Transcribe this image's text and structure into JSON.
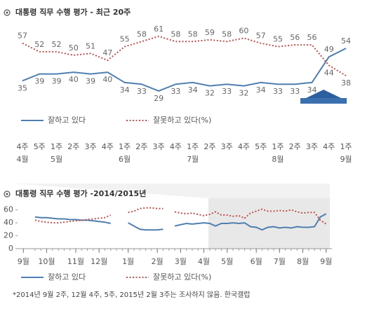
{
  "chart_data": [
    {
      "type": "line",
      "title": "대통령 직무 수행 평가 - 최근 20주",
      "categories": [
        "4주",
        "5주",
        "1주",
        "2주",
        "3주",
        "4주",
        "1주",
        "2주",
        "3주",
        "4주",
        "1주",
        "2주",
        "3주",
        "4주",
        "5주",
        "1주",
        "2주",
        "3주",
        "4주",
        "1주"
      ],
      "months": [
        "4월",
        null,
        "5월",
        null,
        null,
        null,
        "6월",
        null,
        null,
        null,
        "7월",
        null,
        null,
        null,
        null,
        "8월",
        null,
        null,
        null,
        "9월"
      ],
      "ylim": [
        22,
        70
      ],
      "series": [
        {
          "name": "잘하고 있다",
          "color": "#4f7fb0",
          "style": "solid",
          "values": [
            35,
            39,
            39,
            40,
            39,
            40,
            34,
            33,
            29,
            33,
            34,
            32,
            33,
            32,
            34,
            33,
            33,
            34,
            49,
            54
          ]
        },
        {
          "name": "잘못하고 있다(%)",
          "color": "#c0504d",
          "style": "dotted",
          "values": [
            57,
            52,
            52,
            50,
            51,
            47,
            55,
            58,
            61,
            58,
            58,
            59,
            58,
            60,
            57,
            55,
            56,
            56,
            44,
            38
          ]
        }
      ]
    },
    {
      "type": "line",
      "title": "대통령 직무 수행 평가 -2014/2015년",
      "x": [
        0,
        1,
        2,
        3,
        4,
        5,
        6,
        7,
        8,
        9,
        10,
        11,
        12,
        13,
        14,
        15,
        16,
        17,
        18,
        19,
        20,
        21,
        22,
        23,
        24,
        25,
        26,
        27,
        28,
        29,
        30,
        31,
        32,
        33,
        34,
        35,
        36,
        37,
        38,
        39,
        40,
        41,
        42,
        43,
        44,
        45,
        46,
        47,
        48,
        49,
        50
      ],
      "xlim": [
        -3,
        51
      ],
      "xticks": [
        {
          "value": -2,
          "label": "9월"
        },
        {
          "value": 2,
          "label": "10월"
        },
        {
          "value": 7,
          "label": "11월"
        },
        {
          "value": 11,
          "label": "12월"
        },
        {
          "value": 16,
          "label": "1월"
        },
        {
          "value": 21,
          "label": "2월"
        },
        {
          "value": 25,
          "label": "3월"
        },
        {
          "value": 29,
          "label": "4월"
        },
        {
          "value": 33,
          "label": "5월"
        },
        {
          "value": 38,
          "label": "6월"
        },
        {
          "value": 42,
          "label": "7월"
        },
        {
          "value": 46,
          "label": "8월"
        },
        {
          "value": 50,
          "label": "9월"
        }
      ],
      "ylim": [
        0,
        65
      ],
      "yticks": [
        0,
        20,
        40,
        60
      ],
      "series": [
        {
          "name": "잘하고 있다",
          "color": "#4f7fb0",
          "style": "solid",
          "values": [
            49,
            48,
            48,
            47,
            46,
            46,
            45,
            45,
            44,
            44,
            43,
            42,
            41,
            39,
            null,
            null,
            40,
            35,
            30,
            29,
            29,
            29,
            30,
            null,
            35,
            37,
            39,
            38,
            39,
            40,
            39,
            35,
            39,
            39,
            40,
            39,
            40,
            34,
            33,
            29,
            33,
            34,
            32,
            33,
            32,
            34,
            33,
            33,
            34,
            49,
            54
          ]
        },
        {
          "name": "잘못하고 있다(%)",
          "color": "#c0504d",
          "style": "dotted",
          "values": [
            44,
            42,
            41,
            40,
            40,
            41,
            42,
            43,
            44,
            45,
            46,
            47,
            48,
            52,
            null,
            null,
            56,
            58,
            62,
            63,
            63,
            62,
            62,
            null,
            57,
            55,
            54,
            55,
            53,
            51,
            53,
            57,
            52,
            52,
            50,
            51,
            47,
            55,
            58,
            61,
            58,
            58,
            59,
            58,
            60,
            57,
            55,
            56,
            56,
            44,
            38
          ]
        }
      ],
      "footnote": "*2014년 9월 2주, 12월 4주, 5주, 2015년 2월 3주는 조사하지 않음. 한국갤럽"
    }
  ]
}
